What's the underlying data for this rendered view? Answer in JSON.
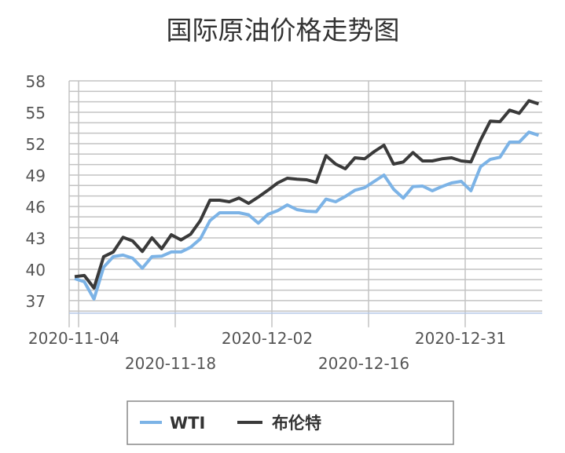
{
  "chart_data": {
    "type": "line",
    "title": "国际原油价格走势图",
    "xlabel": "",
    "ylabel": "",
    "ylim": [
      35.8,
      58
    ],
    "yticks": [
      37,
      40,
      43,
      46,
      49,
      52,
      55,
      58
    ],
    "grid": true,
    "legend_placement": "bottom",
    "x_ticks": [
      {
        "index": 0,
        "label": "2020-11-04"
      },
      {
        "index": 10,
        "label": "2020-11-18"
      },
      {
        "index": 20,
        "label": "2020-12-02"
      },
      {
        "index": 30,
        "label": "2020-12-16"
      },
      {
        "index": 40,
        "label": "2020-12-31"
      }
    ],
    "series": [
      {
        "name": "WTI",
        "color": "#7cb3e6",
        "values": [
          39.1,
          38.8,
          37.15,
          40.2,
          41.2,
          41.35,
          41.05,
          40.1,
          41.2,
          41.25,
          41.65,
          41.65,
          42.1,
          42.9,
          44.65,
          45.4,
          45.4,
          45.4,
          45.2,
          44.4,
          45.25,
          45.6,
          46.15,
          45.7,
          45.55,
          45.5,
          46.7,
          46.45,
          46.95,
          47.55,
          47.8,
          48.4,
          49.0,
          47.65,
          46.8,
          47.9,
          47.95,
          47.5,
          47.9,
          48.25,
          48.4,
          47.5,
          49.8,
          50.5,
          50.7,
          52.15,
          52.15,
          53.1,
          52.8
        ]
      },
      {
        "name": "布伦特",
        "color": "#3a3a3a",
        "values": [
          39.3,
          39.4,
          38.2,
          41.2,
          41.65,
          43.05,
          42.7,
          41.7,
          43.0,
          41.95,
          43.3,
          42.8,
          43.35,
          44.65,
          46.6,
          46.6,
          46.45,
          46.8,
          46.3,
          46.9,
          47.55,
          48.25,
          48.7,
          48.6,
          48.55,
          48.3,
          50.85,
          50.05,
          49.6,
          50.65,
          50.55,
          51.25,
          51.85,
          50.05,
          50.25,
          51.15,
          50.35,
          50.35,
          50.55,
          50.65,
          50.35,
          50.25,
          52.35,
          54.15,
          54.1,
          55.2,
          54.9,
          56.1,
          55.8
        ]
      }
    ]
  }
}
